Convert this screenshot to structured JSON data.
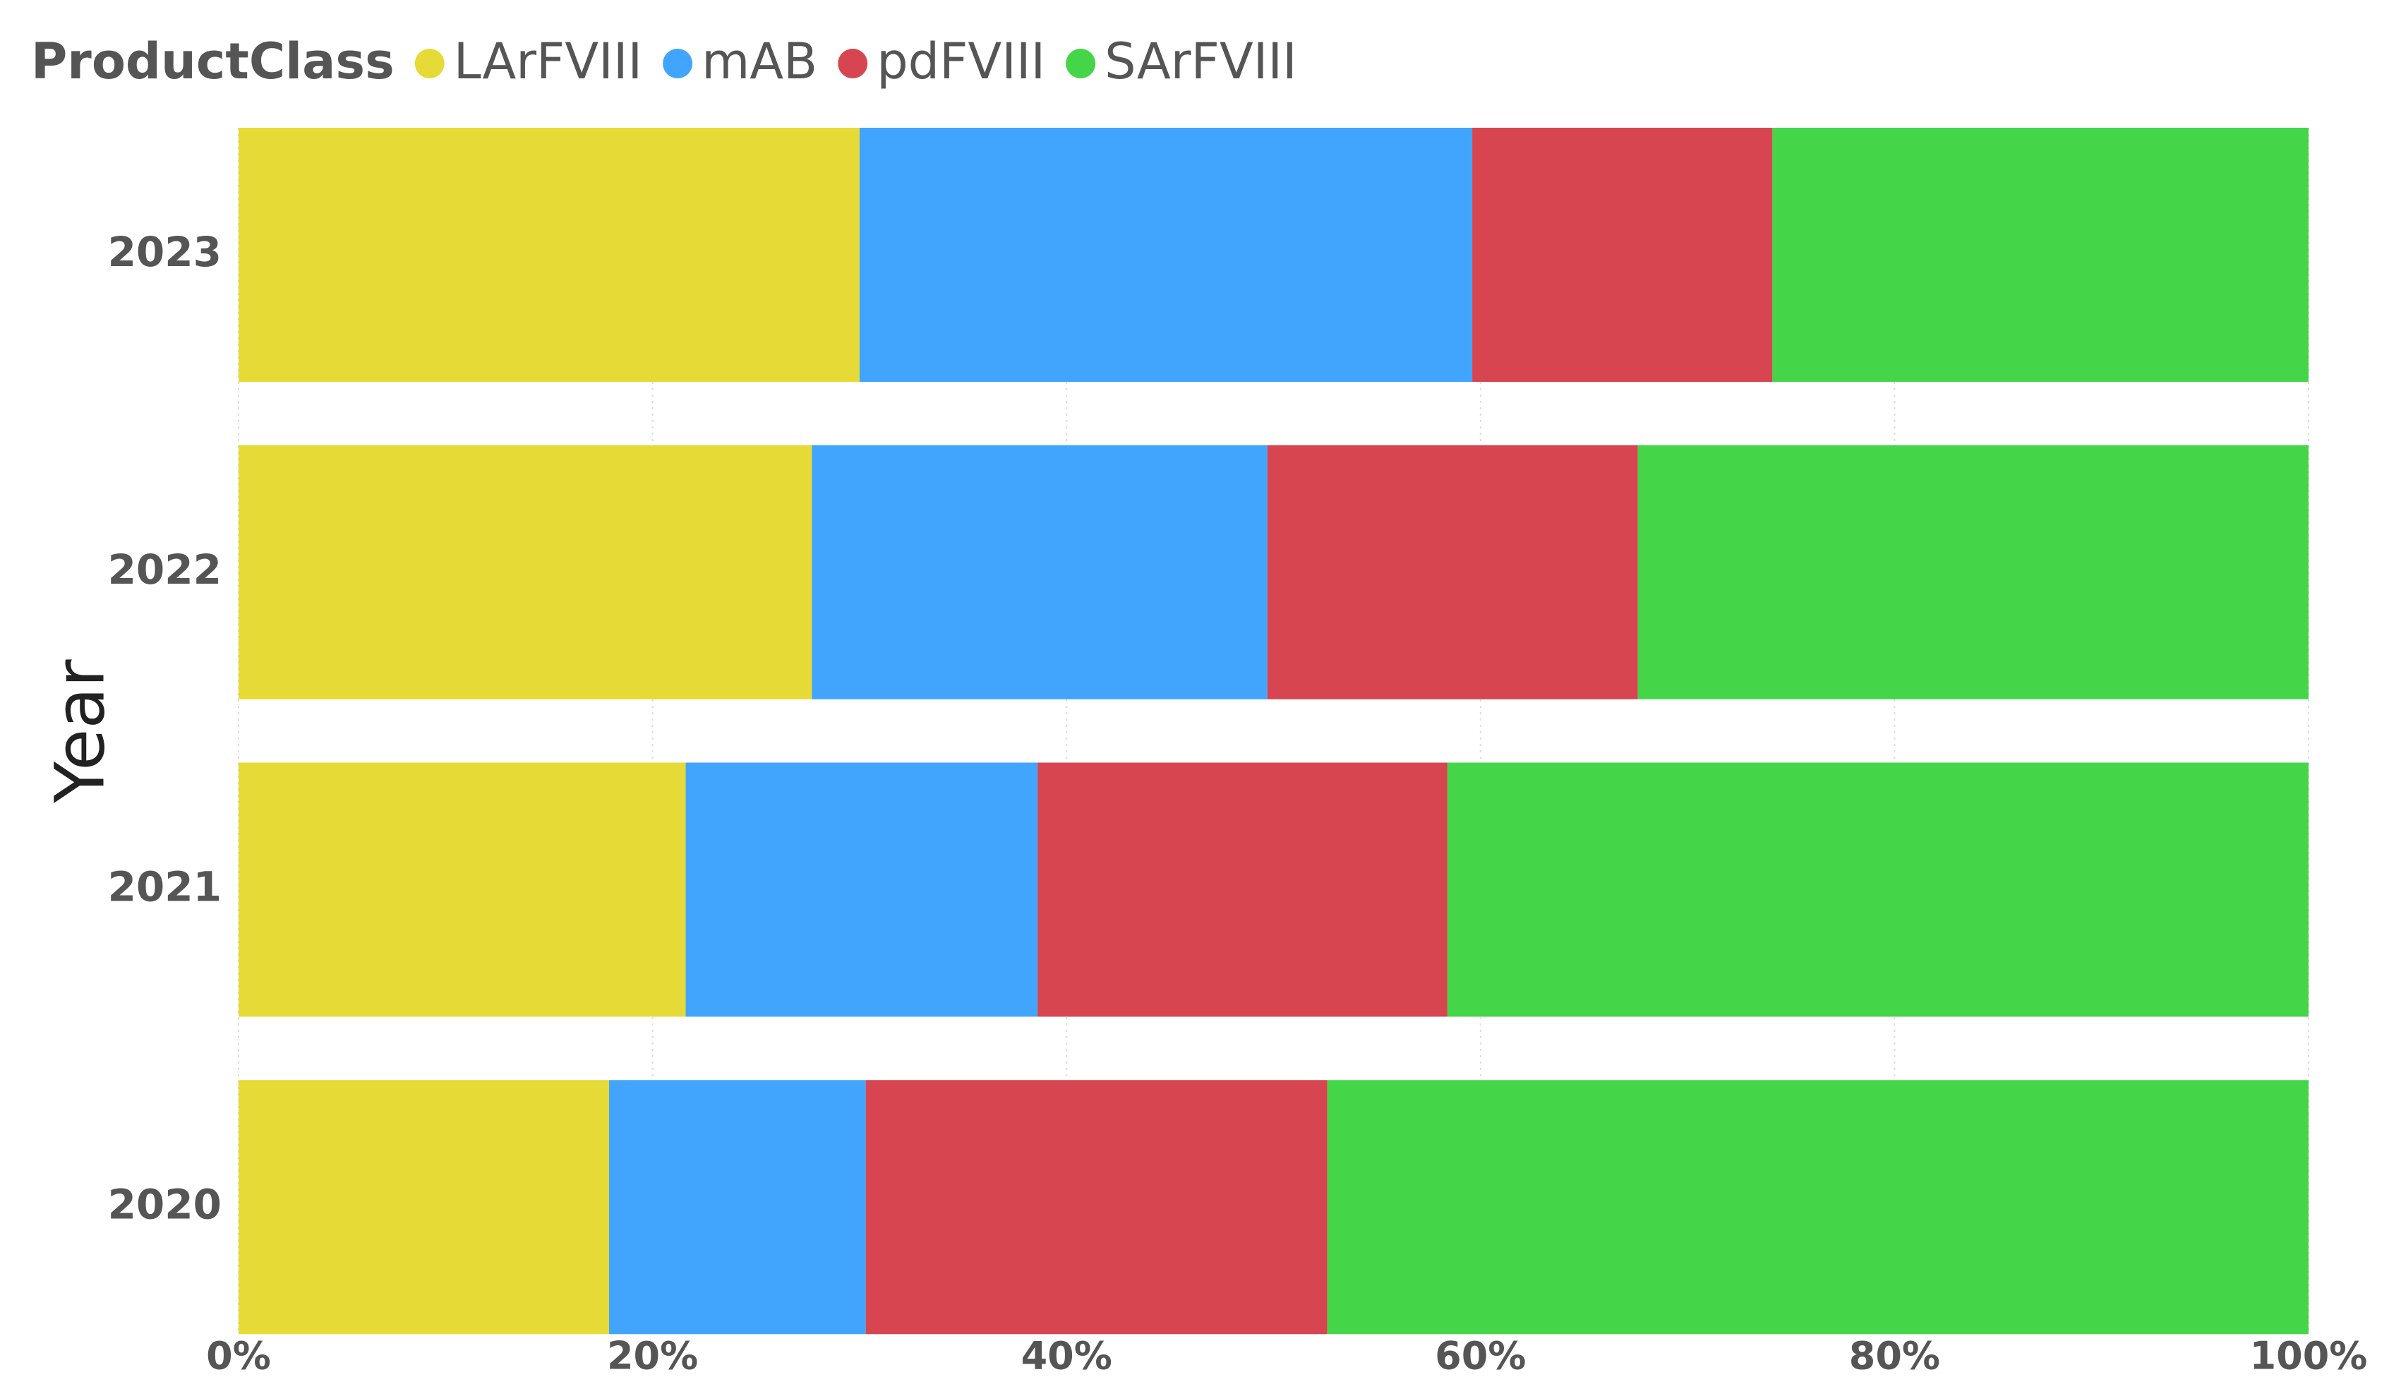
{
  "chart_data": {
    "type": "stacked-bar-horizontal",
    "legend_title": "ProductClass",
    "y_label": "Year",
    "categories": [
      "2023",
      "2022",
      "2021",
      "2020"
    ],
    "series": [
      {
        "name": "LArFVIII",
        "color": "#E5DA36",
        "values": [
          30.0,
          27.7,
          21.6,
          17.9
        ]
      },
      {
        "name": "mAB",
        "color": "#41A5FE",
        "values": [
          29.6,
          22.0,
          17.0,
          12.4
        ]
      },
      {
        "name": "pdFVIII",
        "color": "#D64550",
        "values": [
          14.5,
          17.9,
          19.8,
          22.3
        ]
      },
      {
        "name": "SArFVIII",
        "color": "#44D648",
        "values": [
          25.9,
          32.4,
          41.6,
          47.4
        ]
      }
    ],
    "xlim": [
      0,
      100
    ],
    "xticks": [
      {
        "value": 0,
        "label": "0%"
      },
      {
        "value": 20,
        "label": "20%"
      },
      {
        "value": 40,
        "label": "40%"
      },
      {
        "value": 60,
        "label": "60%"
      },
      {
        "value": 80,
        "label": "80%"
      },
      {
        "value": 100,
        "label": "100%"
      }
    ],
    "grid": true,
    "legend": "top-left"
  }
}
